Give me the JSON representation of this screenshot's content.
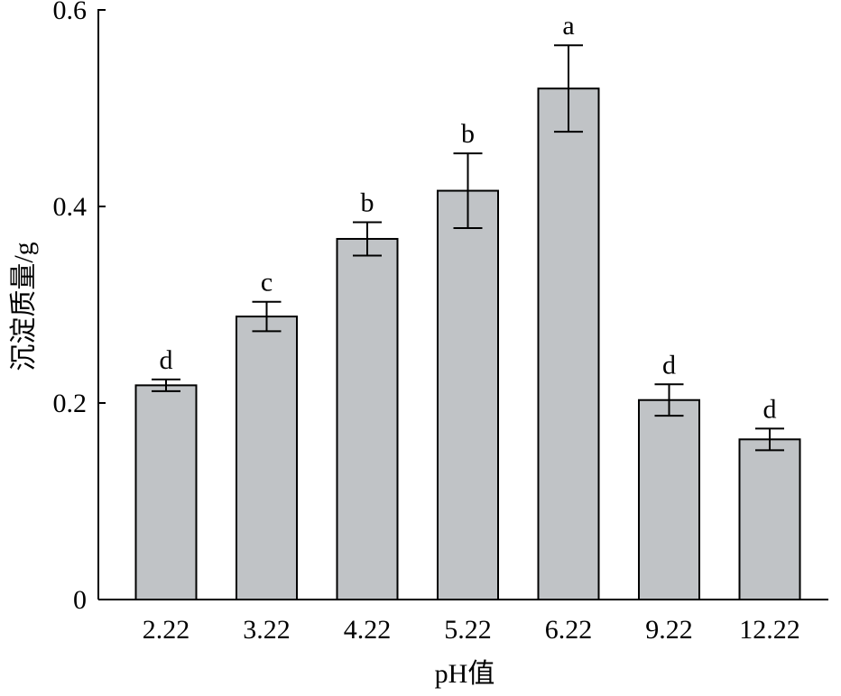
{
  "chart_data": {
    "type": "bar",
    "title": "",
    "xlabel": "pH值",
    "ylabel": "沉淀质量/g",
    "categories": [
      "2.22",
      "3.22",
      "4.22",
      "5.22",
      "6.22",
      "9.22",
      "12.22"
    ],
    "values": [
      0.218,
      0.288,
      0.367,
      0.416,
      0.52,
      0.203,
      0.163
    ],
    "errors": [
      0.006,
      0.015,
      0.017,
      0.038,
      0.044,
      0.016,
      0.011
    ],
    "significance": [
      "d",
      "c",
      "b",
      "b",
      "a",
      "d",
      "d"
    ],
    "ylim": [
      0,
      0.6
    ],
    "yticks": [
      0,
      0.2,
      0.4,
      0.6
    ],
    "ytick_labels": [
      "0",
      "0.2",
      "0.4",
      "0.6"
    ],
    "grid": false,
    "legend": "none",
    "colors": {
      "bar_fill": "#c0c3c6",
      "bar_stroke": "#000000",
      "axis": "#000000",
      "error_bar": "#000000"
    }
  }
}
